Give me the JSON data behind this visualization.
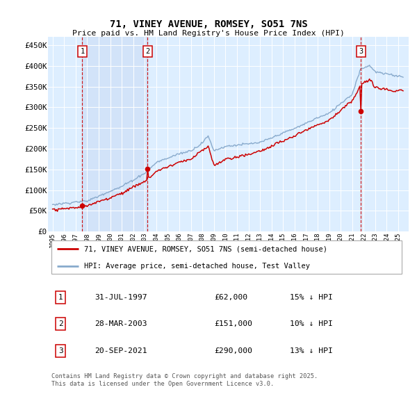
{
  "title": "71, VINEY AVENUE, ROMSEY, SO51 7NS",
  "subtitle": "Price paid vs. HM Land Registry's House Price Index (HPI)",
  "legend_line1": "71, VINEY AVENUE, ROMSEY, SO51 7NS (semi-detached house)",
  "legend_line2": "HPI: Average price, semi-detached house, Test Valley",
  "sale_dates_float": [
    1997.583,
    2003.25,
    2021.75
  ],
  "sale_prices": [
    62000,
    151000,
    290000
  ],
  "sale_labels": [
    "1",
    "2",
    "3"
  ],
  "sale_notes": [
    "31-JUL-1997",
    "28-MAR-2003",
    "20-SEP-2021"
  ],
  "sale_amounts": [
    "£62,000",
    "£151,000",
    "£290,000"
  ],
  "sale_hpi": [
    "15% ↓ HPI",
    "10% ↓ HPI",
    "13% ↓ HPI"
  ],
  "price_color": "#cc0000",
  "hpi_color": "#88aacc",
  "vline_color": "#cc0000",
  "bg_color": "#ddeeff",
  "shade_color": "#ccddf0",
  "grid_color": "#ffffff",
  "ytick_vals": [
    0,
    50000,
    100000,
    150000,
    200000,
    250000,
    300000,
    350000,
    400000,
    450000
  ],
  "ytick_labels": [
    "£0",
    "£50K",
    "£100K",
    "£150K",
    "£200K",
    "£250K",
    "£300K",
    "£350K",
    "£400K",
    "£450K"
  ],
  "ylim_max": 470000,
  "xlim_min": 1994.6,
  "xlim_max": 2025.9,
  "copyright_text": "Contains HM Land Registry data © Crown copyright and database right 2025.\nThis data is licensed under the Open Government Licence v3.0."
}
